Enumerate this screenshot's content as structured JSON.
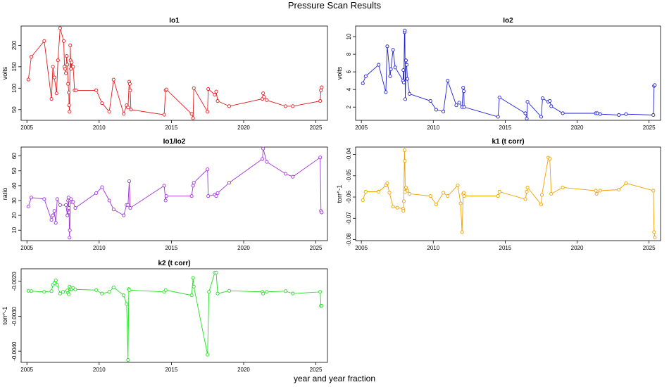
{
  "title": "Pressure Scan Results",
  "xlabel": "year and year fraction",
  "chart_data": [
    {
      "type": "line",
      "title": "Io1",
      "ylabel": "volts",
      "color": "#e41a1c",
      "xlim": [
        2004.6,
        2025.8
      ],
      "ylim": [
        25,
        245
      ],
      "xticks": [
        2005,
        2010,
        2015,
        2020,
        2025
      ],
      "xtick_labels": [
        "2005",
        "2010",
        "2015",
        "2020",
        "2025"
      ],
      "yticks": [
        50,
        100,
        150,
        200
      ],
      "ytick_labels": [
        "50",
        "100",
        "150",
        "200"
      ],
      "x": [
        2005.1,
        2005.3,
        2006.2,
        2006.7,
        2006.8,
        2006.9,
        2007.05,
        2007.15,
        2007.3,
        2007.55,
        2007.6,
        2007.65,
        2007.7,
        2007.75,
        2007.8,
        2007.85,
        2007.9,
        2007.92,
        2007.95,
        2008.0,
        2008.02,
        2008.05,
        2008.1,
        2008.2,
        2008.3,
        2008.4,
        2009.8,
        2010.2,
        2010.7,
        2011.0,
        2011.7,
        2011.9,
        2012.0,
        2012.08,
        2012.12,
        2012.15,
        2012.2,
        2014.5,
        2014.6,
        2014.65,
        2016.4,
        2016.5,
        2016.55,
        2017.5,
        2017.55,
        2018.0,
        2018.1,
        2018.2,
        2019.0,
        2021.3,
        2021.35,
        2021.4,
        2021.6,
        2022.9,
        2023.4,
        2025.3,
        2025.35,
        2025.4
      ],
      "y": [
        120,
        173,
        210,
        75,
        150,
        125,
        88,
        165,
        240,
        210,
        150,
        145,
        135,
        175,
        155,
        110,
        90,
        60,
        45,
        200,
        165,
        145,
        160,
        150,
        95,
        95,
        95,
        65,
        45,
        120,
        40,
        60,
        55,
        115,
        110,
        95,
        50,
        38,
        95,
        97,
        40,
        30,
        100,
        45,
        98,
        85,
        92,
        70,
        58,
        75,
        88,
        80,
        72,
        58,
        58,
        70,
        95,
        102
      ]
    },
    {
      "type": "line",
      "title": "Io2",
      "ylabel": "volts",
      "color": "#1f1fd6",
      "xlim": [
        2004.6,
        2025.8
      ],
      "ylim": [
        0.5,
        11.2
      ],
      "xticks": [
        2005,
        2010,
        2015,
        2020,
        2025
      ],
      "xtick_labels": [
        "2005",
        "2010",
        "2015",
        "2020",
        "2025"
      ],
      "yticks": [
        2,
        4,
        6,
        8,
        10
      ],
      "ytick_labels": [
        "2",
        "4",
        "6",
        "8",
        "10"
      ],
      "x": [
        2005.1,
        2005.3,
        2006.2,
        2006.7,
        2006.8,
        2007.0,
        2007.05,
        2007.2,
        2007.35,
        2007.9,
        2007.92,
        2007.95,
        2008.0,
        2008.02,
        2008.05,
        2008.1,
        2008.15,
        2008.2,
        2008.35,
        2009.8,
        2010.2,
        2010.7,
        2011.0,
        2011.6,
        2011.8,
        2012.0,
        2012.08,
        2012.12,
        2012.15,
        2014.5,
        2014.6,
        2016.4,
        2016.5,
        2016.55,
        2017.5,
        2017.6,
        2018.0,
        2018.1,
        2018.2,
        2019.0,
        2021.3,
        2021.4,
        2021.6,
        2022.9,
        2023.4,
        2025.3,
        2025.35,
        2025.4
      ],
      "y": [
        4.7,
        5.5,
        6.8,
        3.7,
        8.9,
        5.5,
        6.3,
        8.5,
        6.5,
        5.0,
        6.2,
        4.8,
        10.5,
        10.7,
        2.9,
        7.3,
        6.8,
        5.2,
        3.5,
        2.7,
        1.7,
        1.5,
        5.0,
        2.2,
        2.5,
        2.0,
        4.2,
        3.8,
        2.0,
        0.9,
        3.1,
        1.3,
        0.7,
        2.6,
        0.9,
        3.0,
        2.6,
        2.7,
        2.1,
        1.3,
        1.3,
        1.3,
        1.2,
        1.1,
        1.2,
        1.1,
        4.4,
        4.5
      ]
    },
    {
      "type": "line",
      "title": "Io1/Io2",
      "ylabel": "ratio",
      "color": "#a030e0",
      "xlim": [
        2004.6,
        2025.8
      ],
      "ylim": [
        3,
        66
      ],
      "xticks": [
        2005,
        2010,
        2015,
        2020,
        2025
      ],
      "xtick_labels": [
        "2005",
        "2010",
        "2015",
        "2020",
        "2025"
      ],
      "yticks": [
        10,
        20,
        30,
        40,
        50,
        60
      ],
      "ytick_labels": [
        "10",
        "20",
        "30",
        "40",
        "50",
        "60"
      ],
      "x": [
        2005.1,
        2005.3,
        2006.2,
        2006.7,
        2006.8,
        2006.9,
        2007.0,
        2007.1,
        2007.3,
        2007.7,
        2007.8,
        2007.85,
        2007.88,
        2007.9,
        2007.92,
        2007.95,
        2007.97,
        2008.0,
        2008.05,
        2008.1,
        2008.2,
        2008.35,
        2009.8,
        2010.2,
        2010.7,
        2011.0,
        2011.7,
        2011.9,
        2012.0,
        2012.08,
        2012.15,
        2014.5,
        2014.6,
        2014.65,
        2016.4,
        2016.5,
        2016.55,
        2017.5,
        2017.55,
        2018.0,
        2018.1,
        2018.2,
        2019.0,
        2021.3,
        2021.35,
        2021.6,
        2022.9,
        2023.4,
        2025.3,
        2025.35,
        2025.4
      ],
      "y": [
        26,
        32,
        31,
        17,
        20,
        23,
        15,
        31,
        27,
        27,
        20,
        30,
        32,
        25,
        22,
        5,
        10,
        30,
        31,
        29,
        29,
        25,
        35,
        39,
        30,
        24,
        20,
        27,
        27,
        43,
        25,
        40,
        30,
        33,
        33,
        40,
        42,
        51,
        33,
        34,
        33,
        35,
        42,
        58,
        65,
        56,
        48,
        46,
        59,
        23,
        22
      ]
    },
    {
      "type": "line",
      "title": "k1 (t corr)",
      "ylabel": "torr^-1",
      "color": "#f0a000",
      "xlim": [
        2004.6,
        2025.8
      ],
      "ylim": [
        -0.0805,
        -0.0365
      ],
      "xticks": [
        2005,
        2010,
        2015,
        2020,
        2025
      ],
      "xtick_labels": [
        "2005",
        "2010",
        "2015",
        "2020",
        "2025"
      ],
      "yticks": [
        -0.08,
        -0.07,
        -0.06,
        -0.05,
        -0.04
      ],
      "ytick_labels": [
        "-0.08",
        "-0.07",
        "-0.06",
        "-0.05",
        "-0.04"
      ],
      "x": [
        2005.1,
        2005.3,
        2006.2,
        2006.7,
        2006.8,
        2006.95,
        2007.2,
        2007.5,
        2007.9,
        2007.92,
        2007.95,
        2008.0,
        2008.02,
        2008.05,
        2008.1,
        2008.2,
        2008.35,
        2009.8,
        2010.2,
        2010.7,
        2011.0,
        2011.7,
        2011.9,
        2012.0,
        2012.08,
        2012.12,
        2012.15,
        2014.5,
        2014.6,
        2016.4,
        2016.5,
        2016.55,
        2017.5,
        2017.55,
        2018.0,
        2018.1,
        2018.2,
        2019.0,
        2021.3,
        2021.35,
        2021.6,
        2022.9,
        2023.4,
        2025.3,
        2025.35,
        2025.4
      ],
      "y": [
        -0.0615,
        -0.0575,
        -0.0575,
        -0.0545,
        -0.0535,
        -0.058,
        -0.0645,
        -0.065,
        -0.0655,
        -0.0665,
        -0.062,
        -0.038,
        -0.043,
        -0.0575,
        -0.0555,
        -0.057,
        -0.0585,
        -0.0595,
        -0.0635,
        -0.058,
        -0.0595,
        -0.0545,
        -0.063,
        -0.0765,
        -0.0585,
        -0.058,
        -0.0595,
        -0.0595,
        -0.0575,
        -0.061,
        -0.0575,
        -0.0555,
        -0.0635,
        -0.059,
        -0.0415,
        -0.042,
        -0.0585,
        -0.0555,
        -0.057,
        -0.0585,
        -0.057,
        -0.0565,
        -0.0535,
        -0.057,
        -0.0765,
        -0.079
      ]
    },
    {
      "type": "line",
      "title": "k2 (t corr)",
      "ylabel": "torr^-1",
      "color": "#20e020",
      "xlim": [
        2004.6,
        2025.8
      ],
      "ylim": [
        -0.00432,
        -0.00164
      ],
      "xticks": [
        2005,
        2010,
        2015,
        2020,
        2025
      ],
      "xtick_labels": [
        "2005",
        "2010",
        "2015",
        "2020",
        "2025"
      ],
      "yticks": [
        -0.004,
        -0.003,
        -0.002
      ],
      "ytick_labels": [
        "-0.0040",
        "-0.0030",
        "-0.0020"
      ],
      "x": [
        2005.1,
        2005.3,
        2006.2,
        2006.7,
        2006.8,
        2006.9,
        2007.0,
        2007.1,
        2007.3,
        2007.5,
        2007.8,
        2007.85,
        2007.9,
        2007.95,
        2008.0,
        2008.05,
        2008.1,
        2008.2,
        2008.35,
        2009.8,
        2010.2,
        2010.7,
        2011.0,
        2011.7,
        2011.9,
        2012.0,
        2012.05,
        2012.1,
        2014.5,
        2014.6,
        2016.4,
        2016.5,
        2016.55,
        2017.5,
        2017.6,
        2018.0,
        2018.1,
        2018.2,
        2019.0,
        2021.3,
        2021.35,
        2021.6,
        2022.9,
        2023.4,
        2025.3,
        2025.35,
        2025.4
      ],
      "y": [
        -0.00227,
        -0.00228,
        -0.0023,
        -0.00228,
        -0.0021,
        -0.00205,
        -0.00197,
        -0.0021,
        -0.00235,
        -0.0023,
        -0.00226,
        -0.00233,
        -0.00237,
        -0.00215,
        -0.00222,
        -0.0022,
        -0.00223,
        -0.00219,
        -0.00223,
        -0.00225,
        -0.00235,
        -0.0023,
        -0.00217,
        -0.0024,
        -0.00265,
        -0.00425,
        -0.00222,
        -0.00225,
        -0.0023,
        -0.00225,
        -0.0024,
        -0.0019,
        -0.00215,
        -0.0041,
        -0.0023,
        -0.00175,
        -0.00175,
        -0.00235,
        -0.00227,
        -0.0023,
        -0.00235,
        -0.0023,
        -0.00228,
        -0.00235,
        -0.0023,
        -0.0027,
        -0.0027
      ]
    }
  ]
}
